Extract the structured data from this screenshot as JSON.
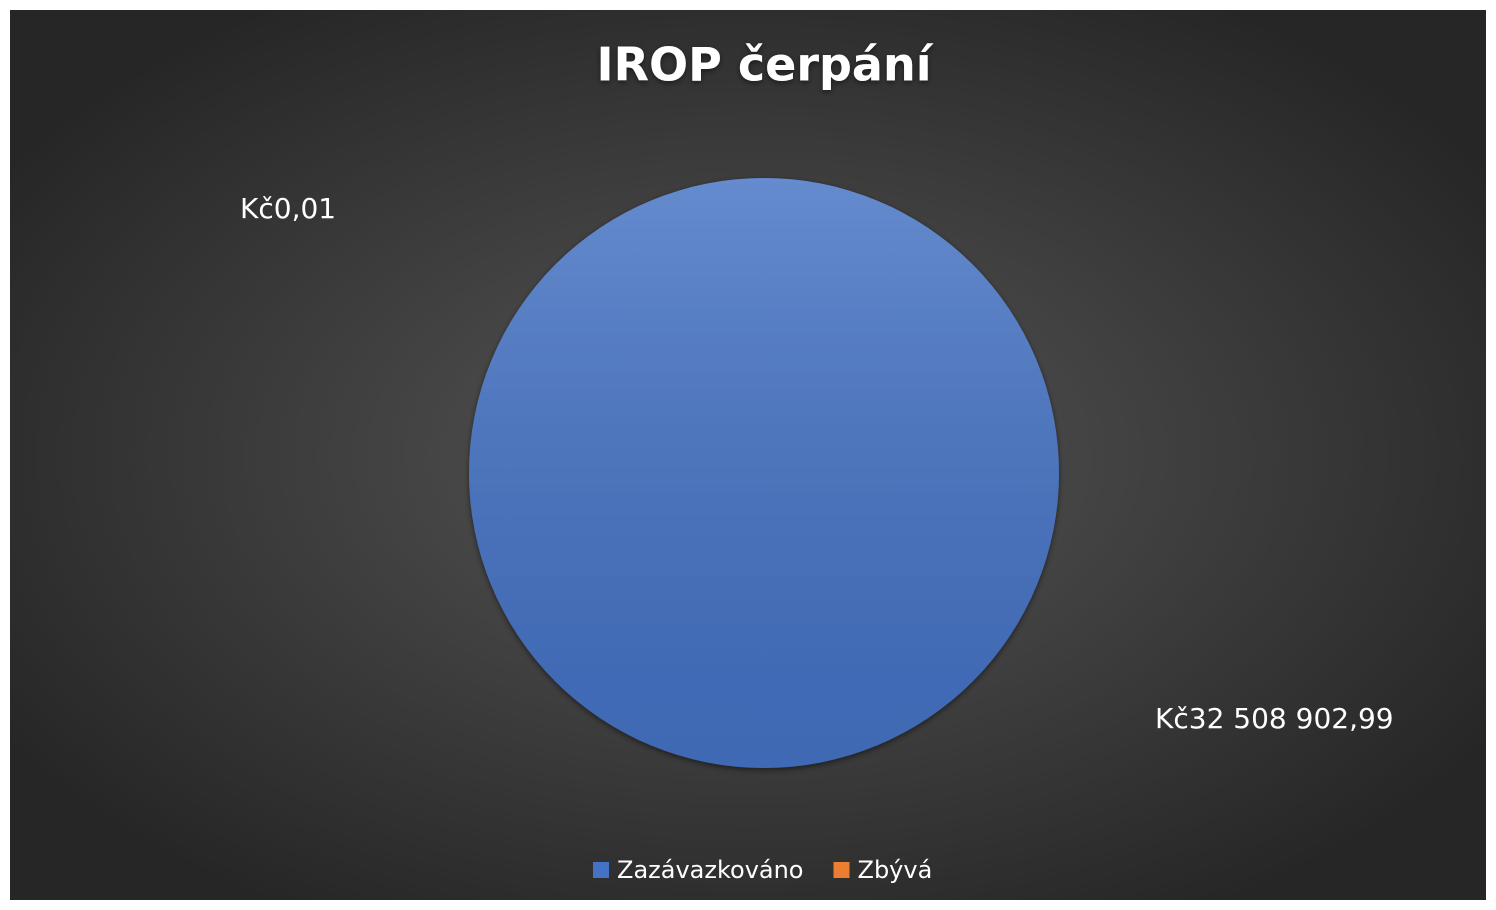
{
  "chart_data": {
    "type": "pie",
    "title": "IROP čerpání",
    "categories": [
      "Zazávazkováno",
      "Zbývá"
    ],
    "values": [
      32508902.99,
      0.01
    ],
    "value_labels": [
      "Kč32 508 902,99",
      "Kč0,01"
    ],
    "colors": [
      "#4472c4",
      "#ed7d31"
    ],
    "legend": "bottom"
  }
}
